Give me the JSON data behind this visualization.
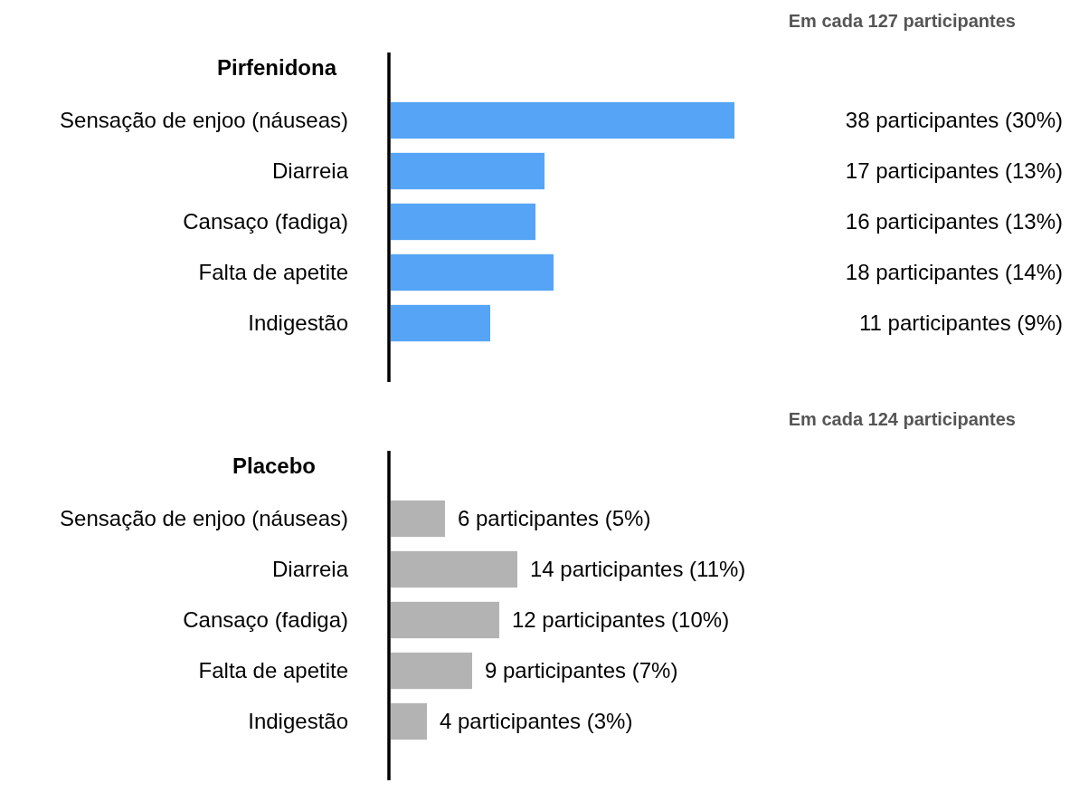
{
  "chart_data": [
    {
      "type": "bar",
      "orientation": "horizontal",
      "title": "Pirfenidona",
      "annotations": [
        "Em cada 127 participantes"
      ],
      "categories": [
        "Sensação de enjoo (náuseas)",
        "Diarreia",
        "Cansaço (fadiga)",
        "Falta de apetite",
        "Indigestão"
      ],
      "values": [
        38,
        17,
        16,
        18,
        11
      ],
      "color": "#55a4f5",
      "value_labels": [
        "38 participantes (30%)",
        "17 participantes (13%)",
        "16 participantes (13%)",
        "18 participantes (14%)",
        "11 participantes (9%)"
      ],
      "tick_labels": "y",
      "grid": false
    },
    {
      "type": "bar",
      "orientation": "horizontal",
      "title": "Placebo",
      "annotations": [
        "Em cada 124 participantes"
      ],
      "categories": [
        "Sensação de enjoo (náuseas)",
        "Diarreia",
        "Cansaço (fadiga)",
        "Falta de apetite",
        "Indigestão"
      ],
      "values": [
        6,
        14,
        12,
        9,
        4
      ],
      "color": "#b3b3b3",
      "value_labels": [
        "6 participantes (5%)",
        "14 participantes (11%)",
        "12 participantes (10%)",
        "9 participantes (7%)",
        "4 participantes (3%)"
      ],
      "tick_labels": "y",
      "grid": false
    }
  ]
}
